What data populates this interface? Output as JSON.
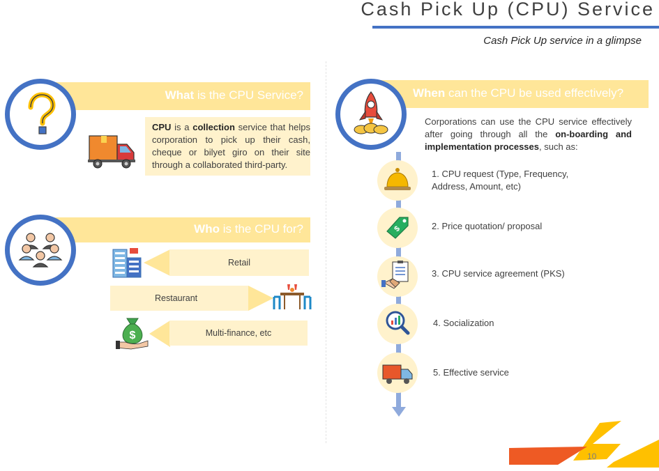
{
  "header": {
    "title": "Cash Pick Up (CPU) Service",
    "subtitle": "Cash Pick Up service in a glimpse"
  },
  "what": {
    "title_bold": "What",
    "title_rest": " is the CPU Service?",
    "icon": "question-mark-icon",
    "truck_icon": "delivery-truck-icon",
    "body_1": "CPU",
    "body_2": " is a ",
    "body_3": "collection",
    "body_4": " service that helps corporation to pick up their cash, cheque or bilyet giro on their site through a collaborated third-party."
  },
  "who": {
    "title_bold": "Who",
    "title_rest": " is the CPU for?",
    "icon": "people-group-icon",
    "segments": [
      {
        "label": "Retail",
        "icon": "building-icon"
      },
      {
        "label": "Restaurant",
        "icon": "dining-table-icon"
      },
      {
        "label": "Multi-finance, etc",
        "icon": "money-bag-icon"
      }
    ]
  },
  "when": {
    "title_bold": "When",
    "title_rest": " can the CPU be used effectively?",
    "icon": "rocket-icon",
    "intro_1": "Corporations can use the CPU service effectively after going through all the ",
    "intro_2": "on-boarding and implementation processes",
    "intro_3": ", such as:",
    "steps": [
      {
        "label": "1. CPU request (Type, Frequency, Address, Amount, etc)",
        "icon": "service-bell-icon"
      },
      {
        "label": "2. Price quotation/ proposal",
        "icon": "price-tag-icon"
      },
      {
        "label": "3. CPU service agreement (PKS)",
        "icon": "agreement-handshake-icon"
      },
      {
        "label": "4. Socialization",
        "icon": "magnifier-chart-icon"
      },
      {
        "label": "5. Effective service",
        "icon": "delivery-truck-icon"
      }
    ]
  },
  "footer": {
    "page_number": "10",
    "colors": {
      "orange": "#ee5a24",
      "yellow": "#ffc000",
      "blue": "#4472c4",
      "band": "#ffe699"
    }
  }
}
